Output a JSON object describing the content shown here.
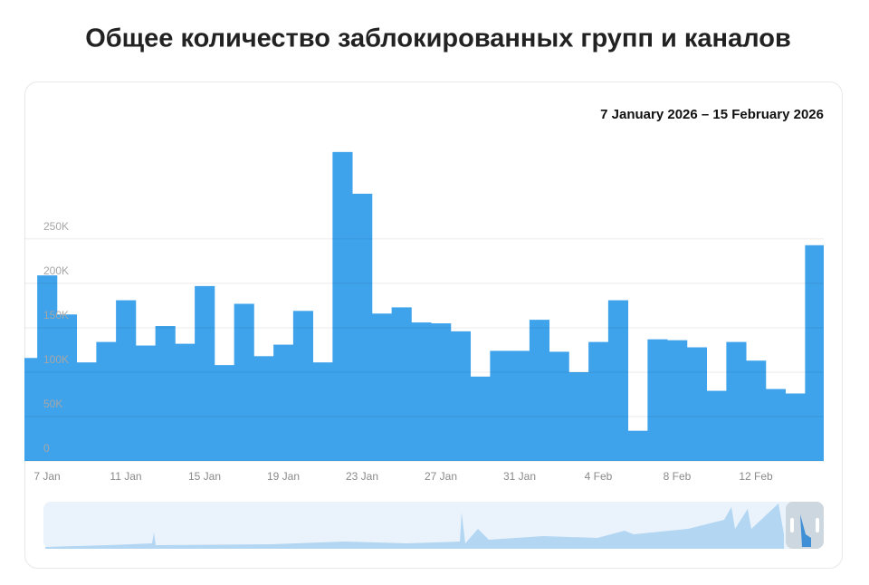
{
  "chart_data": {
    "type": "bar",
    "title": "Общее количество заблокированных групп и каналов",
    "date_range": "7 January 2026 – 15 February 2026",
    "color": "#3fa3ec",
    "grid": true,
    "categories": [
      null,
      "7 Jan",
      null,
      null,
      null,
      "11 Jan",
      null,
      null,
      null,
      "15 Jan",
      null,
      null,
      null,
      "19 Jan",
      null,
      null,
      null,
      "23 Jan",
      null,
      null,
      null,
      "27 Jan",
      null,
      null,
      null,
      "31 Jan",
      null,
      null,
      null,
      "4 Feb",
      null,
      null,
      null,
      "8 Feb",
      null,
      null,
      null,
      "12 Feb",
      null,
      null,
      null
    ],
    "values": [
      116000,
      209000,
      165000,
      111000,
      134000,
      181000,
      130000,
      152000,
      132000,
      197000,
      108000,
      177000,
      118000,
      131000,
      169000,
      111000,
      348000,
      301000,
      166000,
      173000,
      156000,
      155000,
      146000,
      95000,
      124000,
      124000,
      159000,
      123000,
      100000,
      134000,
      181000,
      34000,
      137000,
      136000,
      128000,
      79000,
      134000,
      113000,
      81000,
      76000,
      243000
    ],
    "ylim": [
      0,
      356000
    ],
    "yticks": [
      0,
      {
        "value": 50000,
        "label": "50K"
      },
      {
        "value": 100000,
        "label": "100K"
      },
      {
        "value": 150000,
        "label": "150K"
      },
      {
        "value": 200000,
        "label": "200K"
      },
      {
        "value": 250000,
        "label": "250K"
      }
    ]
  }
}
